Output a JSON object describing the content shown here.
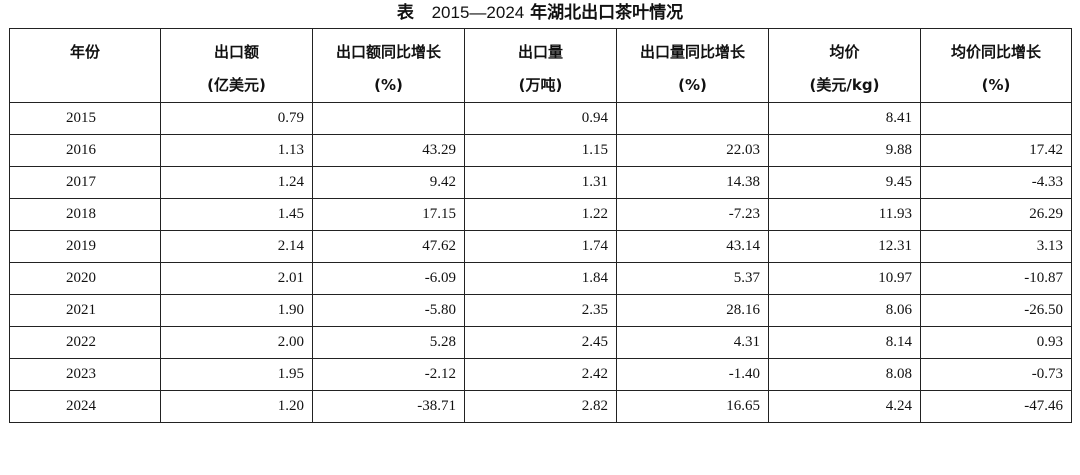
{
  "title": {
    "prefix": "表",
    "range": "2015—2024",
    "suffix": "年湖北出口茶叶情况"
  },
  "headers": [
    {
      "line1": "年份",
      "line2": ""
    },
    {
      "line1": "出口额",
      "line2": "(亿美元)"
    },
    {
      "line1": "出口额同比增长",
      "line2": "(%)"
    },
    {
      "line1": "出口量",
      "line2": "(万吨)"
    },
    {
      "line1": "出口量同比增长",
      "line2": "(%)"
    },
    {
      "line1": "均价",
      "line2": "(美元/kg)"
    },
    {
      "line1": "均价同比增长",
      "line2": "(%)"
    }
  ],
  "rows": [
    [
      "2015",
      "0.79",
      "",
      "0.94",
      "",
      "8.41",
      ""
    ],
    [
      "2016",
      "1.13",
      "43.29",
      "1.15",
      "22.03",
      "9.88",
      "17.42"
    ],
    [
      "2017",
      "1.24",
      "9.42",
      "1.31",
      "14.38",
      "9.45",
      "-4.33"
    ],
    [
      "2018",
      "1.45",
      "17.15",
      "1.22",
      "-7.23",
      "11.93",
      "26.29"
    ],
    [
      "2019",
      "2.14",
      "47.62",
      "1.74",
      "43.14",
      "12.31",
      "3.13"
    ],
    [
      "2020",
      "2.01",
      "-6.09",
      "1.84",
      "5.37",
      "10.97",
      "-10.87"
    ],
    [
      "2021",
      "1.90",
      "-5.80",
      "2.35",
      "28.16",
      "8.06",
      "-26.50"
    ],
    [
      "2022",
      "2.00",
      "5.28",
      "2.45",
      "4.31",
      "8.14",
      "0.93"
    ],
    [
      "2023",
      "1.95",
      "-2.12",
      "2.42",
      "-1.40",
      "8.08",
      "-0.73"
    ],
    [
      "2024",
      "1.20",
      "-38.71",
      "2.82",
      "16.65",
      "4.24",
      "-47.46"
    ]
  ]
}
